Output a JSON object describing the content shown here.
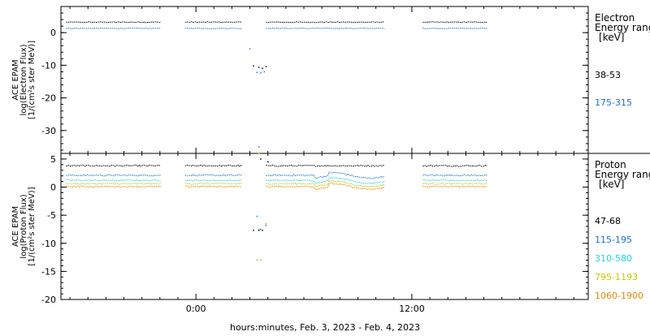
{
  "chart_data": {
    "type": "scatter",
    "xlabel": "hours:minutes, Feb.  3, 2023 - Feb.  4, 2023",
    "x_ticks": [
      {
        "label": "0:00",
        "hour": 0
      },
      {
        "label": "12:00",
        "hour": 12
      }
    ],
    "x_minor_step_hours": 1,
    "xlim_hours": [
      -7.5,
      21.8
    ],
    "panels": [
      {
        "id": "electron",
        "ylabel": [
          "ACE EPAM",
          "log(Electron Flux)",
          "[1/(cm²s ster MeV)]"
        ],
        "ylim": [
          -37,
          8
        ],
        "yticks": [
          0,
          -10,
          -20,
          -30
        ],
        "legend_title": [
          "Electron",
          "Energy range",
          "[keV]"
        ],
        "series": [
          {
            "name": "38-53",
            "color": "#000000",
            "level": 3.2,
            "segments": [
              [
                -7.2,
                -1.9
              ],
              [
                -0.6,
                2.6
              ],
              [
                3.9,
                10.5
              ],
              [
                12.6,
                16.2
              ]
            ],
            "scatter": [
              [
                3.2,
                -10.2
              ],
              [
                3.5,
                -10.6
              ],
              [
                3.7,
                -10.9
              ],
              [
                3.9,
                -10.4
              ]
            ]
          },
          {
            "name": "175-315",
            "color": "#1f6fd0",
            "level": 1.3,
            "segments": [
              [
                -7.2,
                -1.9
              ],
              [
                -0.6,
                2.6
              ],
              [
                3.9,
                10.5
              ],
              [
                12.6,
                16.2
              ]
            ],
            "scatter": [
              [
                3.0,
                -5.0
              ],
              [
                3.4,
                -12.2
              ],
              [
                3.6,
                -12.3
              ],
              [
                3.8,
                -12.0
              ],
              [
                3.5,
                -35.0
              ]
            ]
          }
        ]
      },
      {
        "id": "proton",
        "ylabel": [
          "ACE EPAM",
          "log(Proton Flux)",
          "[1/(cm²s ster MeV)]"
        ],
        "ylim": [
          -20,
          6
        ],
        "yticks": [
          5,
          0,
          -5,
          -10,
          -15,
          -20
        ],
        "legend_title": [
          "Proton",
          "Energy range",
          "[keV]"
        ],
        "series": [
          {
            "name": "47-68",
            "color": "#000000",
            "level": 3.8,
            "segments": [
              [
                -7.2,
                -1.9
              ],
              [
                -0.6,
                2.6
              ],
              [
                3.9,
                10.5
              ],
              [
                12.6,
                16.2
              ]
            ],
            "scatter": [
              [
                3.2,
                -7.7
              ],
              [
                3.5,
                -7.7
              ],
              [
                3.7,
                -7.7
              ],
              [
                3.6,
                5.0
              ],
              [
                4.0,
                4.5
              ]
            ]
          },
          {
            "name": "115-195",
            "color": "#1f6fd0",
            "level": 2.1,
            "segments": [
              [
                -7.2,
                -1.9
              ],
              [
                -0.6,
                2.6
              ],
              [
                3.9,
                10.5
              ],
              [
                12.6,
                16.2
              ]
            ],
            "scatter": [
              [
                3.4,
                -5.2
              ],
              [
                3.6,
                -7.5
              ],
              [
                3.9,
                -6.8
              ]
            ]
          },
          {
            "name": "310-580",
            "color": "#22d3e0",
            "level": 1.2,
            "segments": [
              [
                -7.2,
                -1.9
              ],
              [
                -0.6,
                2.6
              ],
              [
                3.9,
                10.5
              ],
              [
                12.6,
                16.2
              ]
            ],
            "scatter": [
              [
                3.5,
                -7.5
              ]
            ]
          },
          {
            "name": "795-1193",
            "color": "#c8c800",
            "level": 0.6,
            "segments": [
              [
                -7.2,
                -1.9
              ],
              [
                -0.6,
                2.6
              ],
              [
                3.9,
                10.5
              ],
              [
                12.6,
                16.2
              ]
            ],
            "scatter": [
              [
                3.5,
                6.0
              ]
            ]
          },
          {
            "name": "1060-1900",
            "color": "#e08a00",
            "level": 0.1,
            "segments": [
              [
                -7.2,
                -1.9
              ],
              [
                -0.6,
                2.6
              ],
              [
                3.9,
                10.5
              ],
              [
                12.6,
                16.2
              ]
            ],
            "scatter": [
              [
                3.4,
                -13.0
              ],
              [
                3.6,
                -13.0
              ],
              [
                3.9,
                -6.5
              ]
            ]
          }
        ]
      }
    ]
  }
}
